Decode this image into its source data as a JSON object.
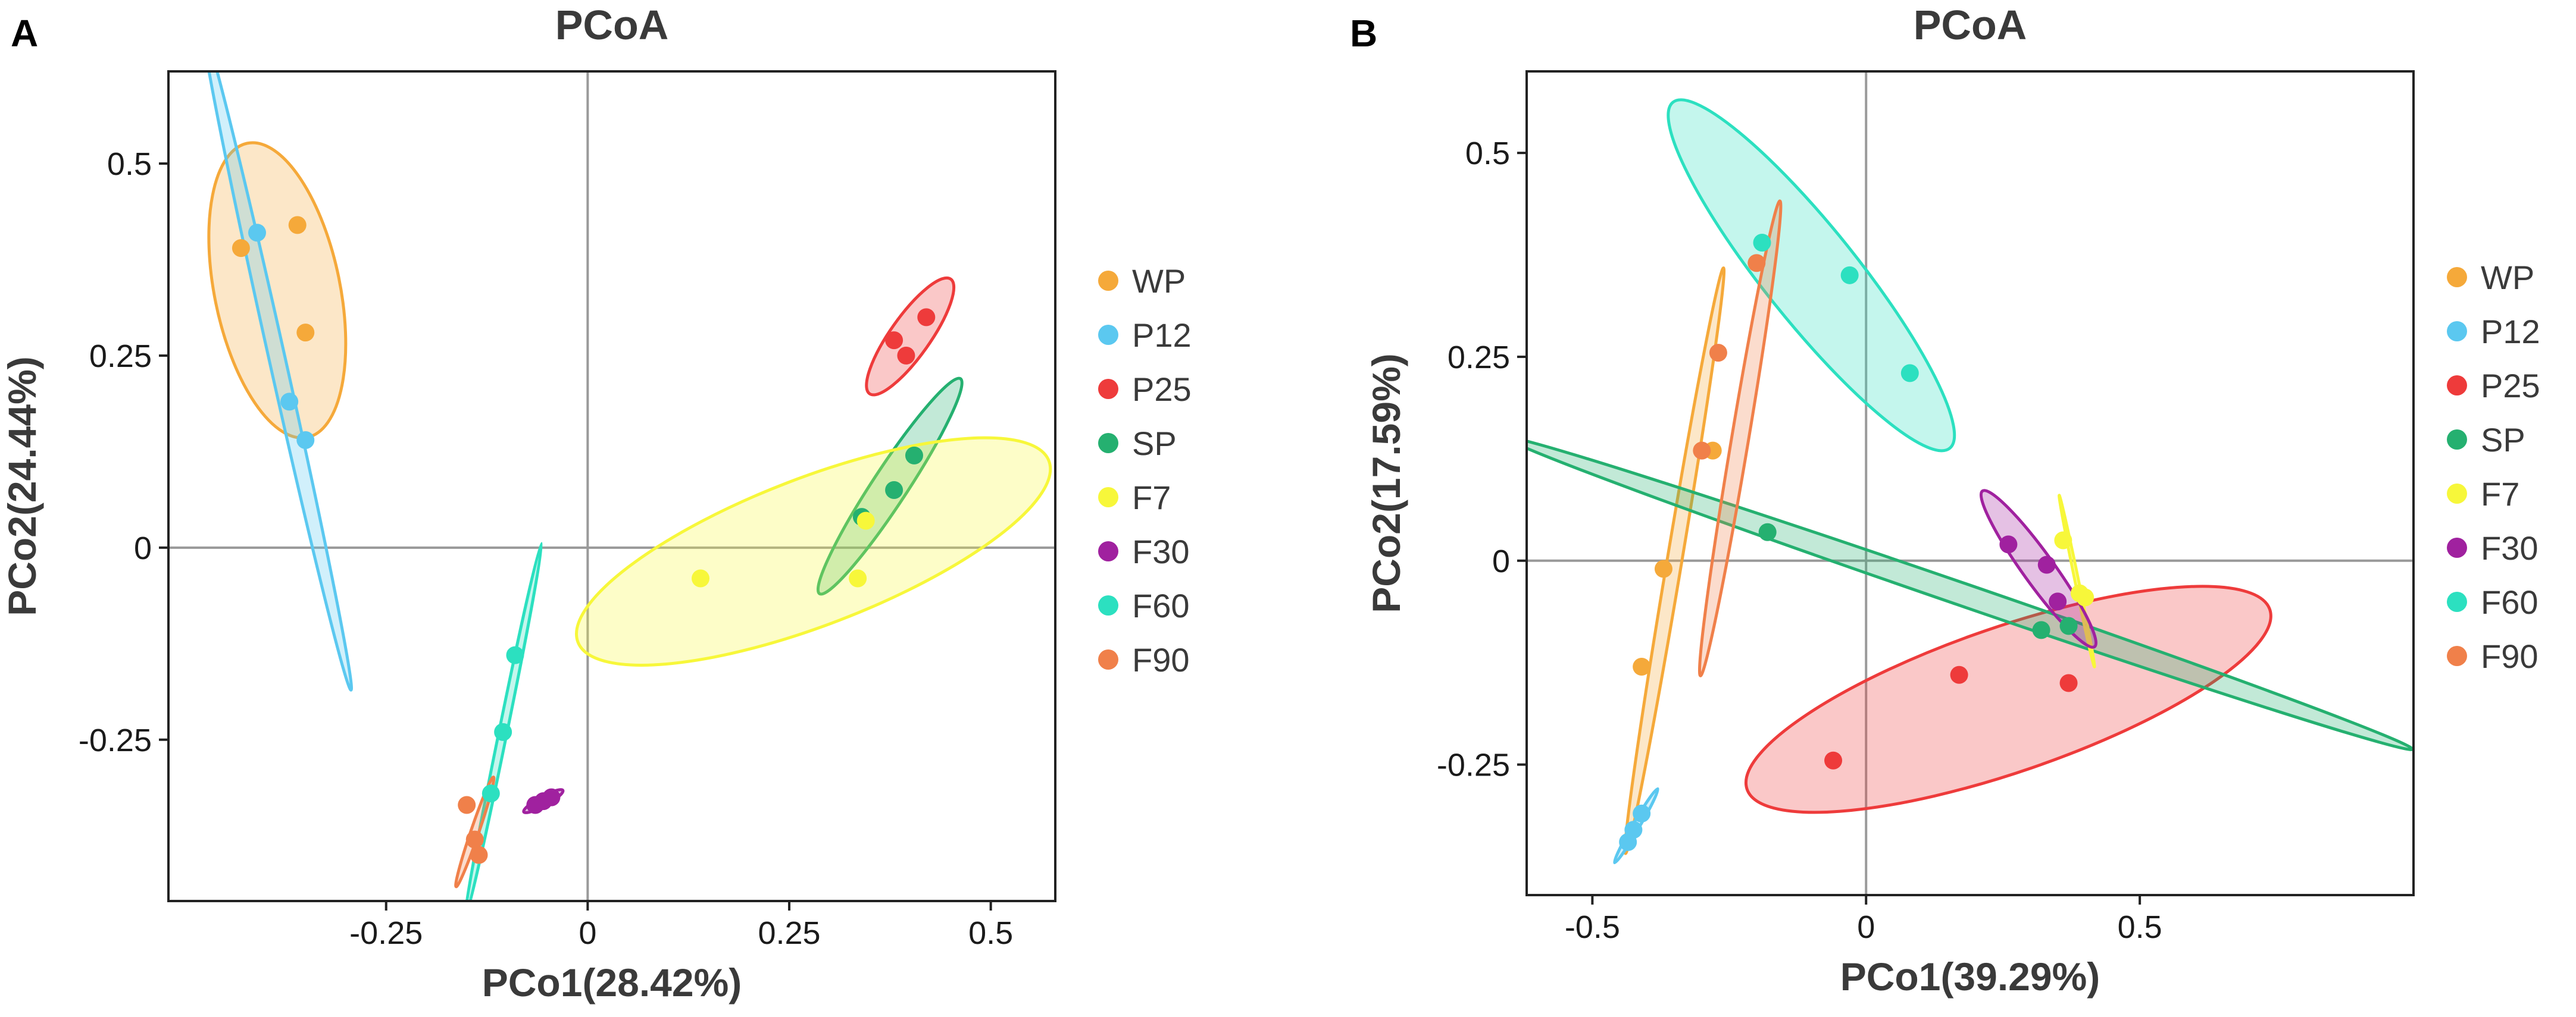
{
  "chart_data": [
    {
      "type": "scatter",
      "panel": "A",
      "title": "PCoA",
      "xlabel": "PCo1(28.42%)",
      "ylabel": "PCo2(24.44%)",
      "xlim": [
        -0.52,
        0.58
      ],
      "ylim": [
        -0.46,
        0.62
      ],
      "xticks": [
        -0.25,
        0,
        0.25,
        0.5
      ],
      "xtick_labels": [
        "-0.25",
        "0",
        "0.25",
        "0.5"
      ],
      "yticks": [
        -0.25,
        0,
        0.25,
        0.5
      ],
      "ytick_labels": [
        "-0.25",
        "0",
        "0.25",
        "0.5"
      ],
      "legend_position": "right",
      "series": [
        {
          "name": "WP",
          "color": "#F5A93A",
          "points": [
            [
              -0.43,
              0.39
            ],
            [
              -0.36,
              0.42
            ],
            [
              -0.35,
              0.28
            ]
          ],
          "ellipse": {
            "cx": -0.385,
            "cy": 0.335,
            "a": 0.195,
            "b": 0.078,
            "angle": 101
          }
        },
        {
          "name": "P12",
          "color": "#5BC8F0",
          "points": [
            [
              -0.41,
              0.41
            ],
            [
              -0.37,
              0.19
            ],
            [
              -0.35,
              0.14
            ]
          ],
          "ellipse": {
            "cx": -0.385,
            "cy": 0.245,
            "a": 0.44,
            "b": 0.01,
            "angle": 102
          }
        },
        {
          "name": "P25",
          "color": "#EE3B3B",
          "points": [
            [
              0.38,
              0.27
            ],
            [
              0.395,
              0.25
            ],
            [
              0.42,
              0.3
            ]
          ],
          "ellipse": {
            "cx": 0.4,
            "cy": 0.275,
            "a": 0.09,
            "b": 0.025,
            "angle": 56
          }
        },
        {
          "name": "SP",
          "color": "#25B070",
          "points": [
            [
              0.34,
              0.04
            ],
            [
              0.38,
              0.075
            ],
            [
              0.405,
              0.12
            ]
          ],
          "ellipse": {
            "cx": 0.375,
            "cy": 0.08,
            "a": 0.165,
            "b": 0.022,
            "angle": 58
          }
        },
        {
          "name": "F7",
          "color": "#F7F73A",
          "points": [
            [
              0.14,
              -0.04
            ],
            [
              0.335,
              -0.04
            ],
            [
              0.345,
              0.035
            ]
          ],
          "ellipse": {
            "cx": 0.28,
            "cy": -0.005,
            "a": 0.315,
            "b": 0.095,
            "angle": 22
          }
        },
        {
          "name": "F30",
          "color": "#A0219F",
          "points": [
            [
              -0.065,
              -0.335
            ],
            [
              -0.055,
              -0.33
            ],
            [
              -0.045,
              -0.325
            ]
          ],
          "ellipse": {
            "cx": -0.055,
            "cy": -0.33,
            "a": 0.028,
            "b": 0.006,
            "angle": 30
          }
        },
        {
          "name": "F60",
          "color": "#2CE0C0",
          "points": [
            [
              -0.09,
              -0.14
            ],
            [
              -0.105,
              -0.24
            ],
            [
              -0.12,
              -0.32
            ]
          ],
          "ellipse": {
            "cx": -0.105,
            "cy": -0.24,
            "a": 0.25,
            "b": 0.005,
            "angle": 79
          }
        },
        {
          "name": "F90",
          "color": "#F0804A",
          "points": [
            [
              -0.15,
              -0.335
            ],
            [
              -0.14,
              -0.38
            ],
            [
              -0.135,
              -0.4
            ]
          ],
          "ellipse": {
            "cx": -0.14,
            "cy": -0.37,
            "a": 0.075,
            "b": 0.005,
            "angle": 72
          }
        }
      ]
    },
    {
      "type": "scatter",
      "panel": "B",
      "title": "PCoA",
      "xlabel": "PCo1(39.29%)",
      "ylabel": "PCo2(17.59%)",
      "xlim": [
        -0.62,
        1.0
      ],
      "ylim": [
        -0.41,
        0.6
      ],
      "xticks": [
        -0.5,
        0,
        0.5
      ],
      "xtick_labels": [
        "-0.5",
        "0",
        "0.5"
      ],
      "yticks": [
        -0.25,
        0,
        0.25,
        0.5
      ],
      "ytick_labels": [
        "-0.25",
        "0",
        "0.25",
        "0.5"
      ],
      "legend_position": "right",
      "series": [
        {
          "name": "WP",
          "color": "#F5A93A",
          "points": [
            [
              -0.28,
              0.135
            ],
            [
              -0.37,
              -0.01
            ],
            [
              -0.41,
              -0.13
            ]
          ],
          "ellipse": {
            "cx": -0.35,
            "cy": 0.0,
            "a": 0.37,
            "b": 0.013,
            "angle": 76
          }
        },
        {
          "name": "P12",
          "color": "#5BC8F0",
          "points": [
            [
              -0.435,
              -0.345
            ],
            [
              -0.425,
              -0.33
            ],
            [
              -0.41,
              -0.31
            ]
          ],
          "ellipse": {
            "cx": -0.42,
            "cy": -0.325,
            "a": 0.06,
            "b": 0.005,
            "angle": 49
          }
        },
        {
          "name": "P25",
          "color": "#EE3B3B",
          "points": [
            [
              -0.06,
              -0.245
            ],
            [
              0.17,
              -0.14
            ],
            [
              0.37,
              -0.15
            ]
          ],
          "ellipse": {
            "cx": 0.26,
            "cy": -0.17,
            "a": 0.49,
            "b": 0.09,
            "angle": 13
          }
        },
        {
          "name": "SP",
          "color": "#25B070",
          "points": [
            [
              -0.18,
              0.035
            ],
            [
              0.32,
              -0.085
            ],
            [
              0.37,
              -0.08
            ]
          ],
          "ellipse": {
            "cx": 0.17,
            "cy": -0.04,
            "a": 0.85,
            "b": 0.014,
            "angle": -13
          }
        },
        {
          "name": "F7",
          "color": "#F7F73A",
          "points": [
            [
              0.36,
              0.025
            ],
            [
              0.39,
              -0.04
            ],
            [
              0.4,
              -0.045
            ]
          ],
          "ellipse": {
            "cx": 0.385,
            "cy": -0.025,
            "a": 0.11,
            "b": 0.003,
            "angle": -73
          }
        },
        {
          "name": "F30",
          "color": "#A0219F",
          "points": [
            [
              0.26,
              0.02
            ],
            [
              0.33,
              -0.005
            ],
            [
              0.35,
              -0.05
            ]
          ],
          "ellipse": {
            "cx": 0.315,
            "cy": -0.01,
            "a": 0.14,
            "b": 0.022,
            "angle": -43
          }
        },
        {
          "name": "F60",
          "color": "#2CE0C0",
          "points": [
            [
              -0.19,
              0.39
            ],
            [
              -0.03,
              0.35
            ],
            [
              0.08,
              0.23
            ]
          ],
          "ellipse": {
            "cx": -0.1,
            "cy": 0.35,
            "a": 0.33,
            "b": 0.065,
            "angle": -40
          }
        },
        {
          "name": "F90",
          "color": "#F0804A",
          "points": [
            [
              -0.2,
              0.365
            ],
            [
              -0.27,
              0.255
            ],
            [
              -0.3,
              0.135
            ]
          ],
          "ellipse": {
            "cx": -0.23,
            "cy": 0.15,
            "a": 0.3,
            "b": 0.015,
            "angle": 76
          }
        }
      ]
    }
  ]
}
